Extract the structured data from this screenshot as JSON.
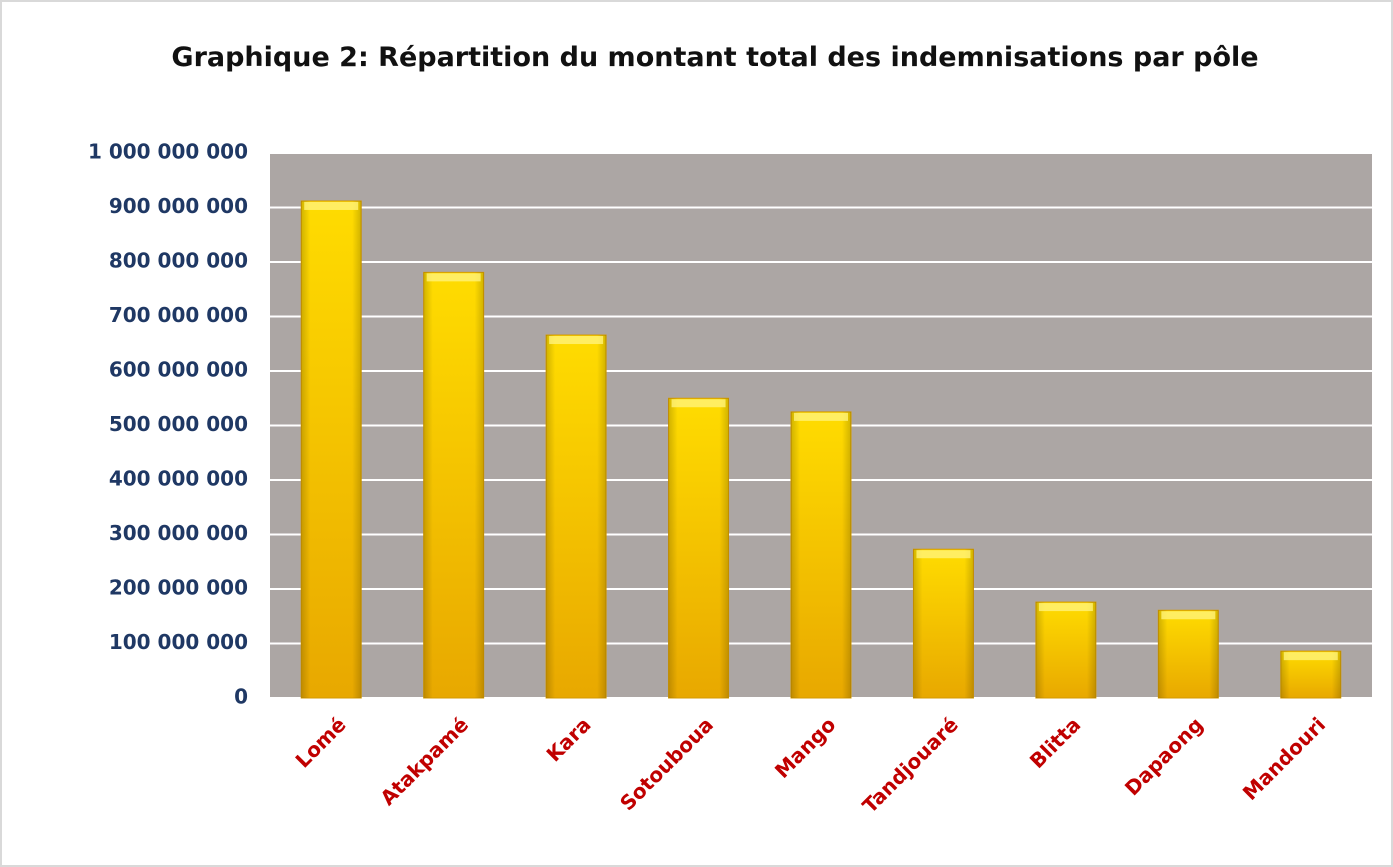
{
  "chart_data": {
    "type": "bar",
    "title": "Graphique 2: Répartition du montant total des indemnisations par pôle",
    "categories": [
      "Lomé",
      "Atakpamé",
      "Kara",
      "Sotouboua",
      "Mango",
      "Tandjouaré",
      "Blitta",
      "Dapaong",
      "Mandouri"
    ],
    "values": [
      912000000,
      781000000,
      666000000,
      550000000,
      525000000,
      273000000,
      176000000,
      161000000,
      86000000
    ],
    "color": "#ffd000",
    "ylim": [
      0,
      1000000000
    ],
    "yticks": [
      0,
      {
        "value": 100000000,
        "label": "100 000 000"
      },
      {
        "value": 200000000,
        "label": "200 000 000"
      },
      {
        "value": 300000000,
        "label": "300 000 000"
      },
      {
        "value": 400000000,
        "label": "400 000 000"
      },
      {
        "value": 500000000,
        "label": "500 000 000"
      },
      {
        "value": 600000000,
        "label": "600 000 000"
      },
      {
        "value": 700000000,
        "label": "700 000 000"
      },
      {
        "value": 800000000,
        "label": "800 000 000"
      },
      {
        "value": 900000000,
        "label": "900 000 000"
      },
      {
        "value": 1000000000,
        "label": "1 000 000 000"
      }
    ],
    "grid": true
  }
}
